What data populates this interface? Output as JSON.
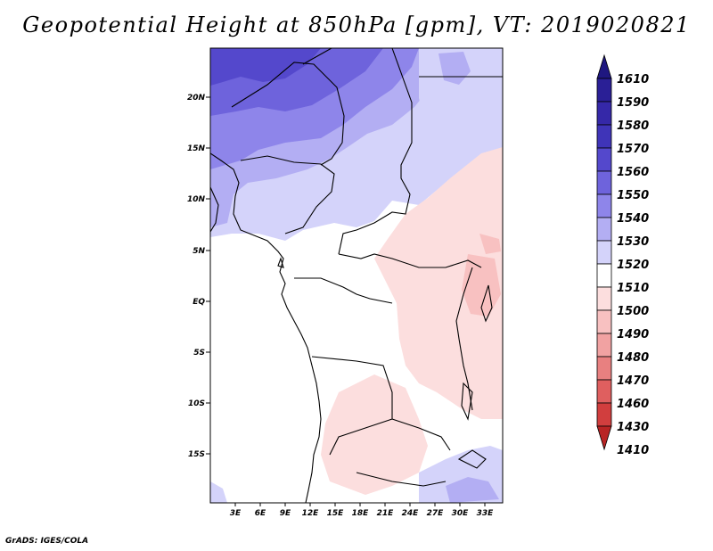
{
  "title": "Geopotential Height at 850hPa [gpm], VT: 2019020821",
  "credit": "GrADS: IGES/COLA",
  "map": {
    "lat_labels": [
      "20N",
      "15N",
      "10N",
      "5N",
      "EQ",
      "5S",
      "10S",
      "15S"
    ],
    "lon_labels": [
      "3E",
      "6E",
      "9E",
      "12E",
      "15E",
      "18E",
      "21E",
      "24E",
      "27E",
      "30E",
      "33E"
    ]
  },
  "colorbar": {
    "levels": [
      "1610",
      "1590",
      "1580",
      "1570",
      "1560",
      "1550",
      "1540",
      "1530",
      "1520",
      "1510",
      "1500",
      "1490",
      "1480",
      "1470",
      "1460",
      "1430",
      "1410"
    ],
    "colors": [
      "#1f1780",
      "#2a1f96",
      "#3528a8",
      "#3f34b8",
      "#5448cc",
      "#6e63dc",
      "#8e85ea",
      "#b3aef3",
      "#d4d3fa",
      "#ffffff",
      "#fcdede",
      "#f8c1c1",
      "#f1a2a2",
      "#e88080",
      "#df5f5f",
      "#d13e3e",
      "#b82424"
    ]
  }
}
